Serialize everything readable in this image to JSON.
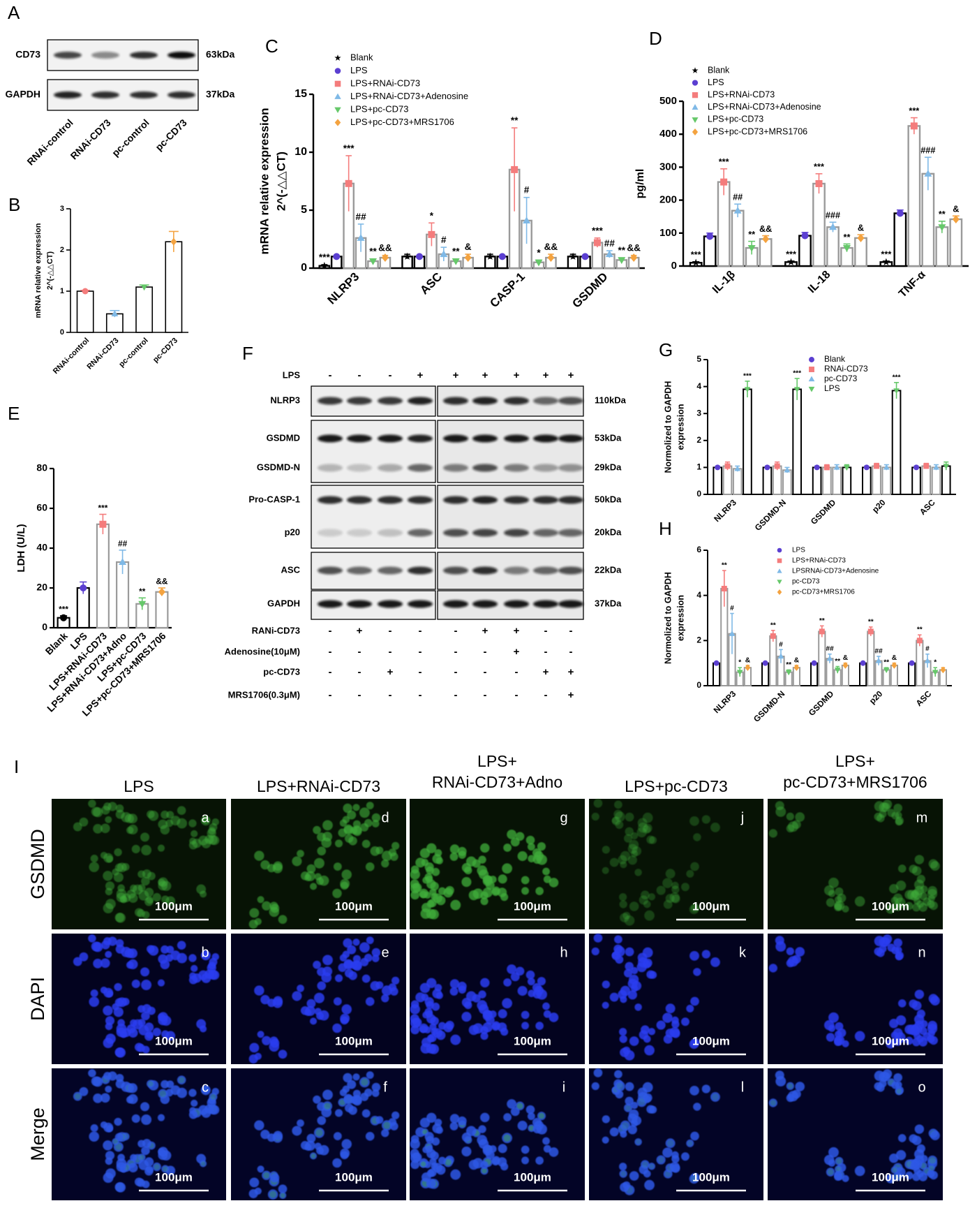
{
  "panel_labels": [
    "A",
    "B",
    "C",
    "D",
    "E",
    "F",
    "G",
    "H",
    "I"
  ],
  "blot_a": {
    "rows": [
      {
        "name": "CD73",
        "size": "63kDa"
      },
      {
        "name": "GAPDH",
        "size": "37kDa"
      }
    ],
    "lanes": [
      "RNAi-control",
      "RNAi-CD73",
      "pc-control",
      "pc-CD73"
    ]
  },
  "blot_f": {
    "top": {
      "name": "LPS",
      "signs": [
        "-",
        "-",
        "-",
        "+",
        "+",
        "+",
        "+",
        "+",
        "+"
      ]
    },
    "rows": [
      {
        "name": "NLRP3",
        "size": "110kDa"
      },
      {
        "name": "GSDMD",
        "size": "53kDa"
      },
      {
        "name": "GSDMD-N",
        "size": "29kDa"
      },
      {
        "name": "Pro-CASP-1",
        "size": "50kDa"
      },
      {
        "name": "p20",
        "size": "20kDa"
      },
      {
        "name": "ASC",
        "size": "22kDa"
      },
      {
        "name": "GAPDH",
        "size": "37kDa"
      }
    ],
    "treatments": [
      {
        "name": "RANi-CD73",
        "signs": [
          "-",
          "+",
          "-",
          "-",
          "-",
          "+",
          "+",
          "-",
          "-"
        ]
      },
      {
        "name": "Adenosine(10μM)",
        "signs": [
          "-",
          "-",
          "-",
          "-",
          "-",
          "-",
          "+",
          "-",
          "-"
        ]
      },
      {
        "name": "pc-CD73",
        "signs": [
          "-",
          "-",
          "+",
          "-",
          "-",
          "-",
          "-",
          "+",
          "+"
        ]
      },
      {
        "name": "MRS1706(0.3μM)",
        "signs": [
          "-",
          "-",
          "-",
          "-",
          "-",
          "-",
          "-",
          "-",
          "+"
        ]
      }
    ]
  },
  "chart_data": [
    {
      "type": "bar",
      "ylabel": [
        "mRNA relative expression",
        "2^(-△△CT)"
      ],
      "categories": [
        "RNAi-control",
        "RNAi-CD73",
        "pc-control",
        "pc-CD73"
      ],
      "values": [
        1.0,
        0.45,
        1.1,
        2.2
      ],
      "errors": [
        0.02,
        0.08,
        0.05,
        0.25
      ],
      "colors": [
        "#f47c7c",
        "#7fb9e6",
        "#66c86a",
        "#f4a340"
      ],
      "markers": [
        "circle",
        "triangle",
        "triangle-down",
        "diamond"
      ],
      "edges": [
        "#000000",
        "#000000",
        "#000000",
        "#000000"
      ],
      "ylim": [
        0,
        3
      ],
      "yticks": [
        0,
        1,
        2,
        3
      ]
    },
    {
      "type": "bar",
      "ylabel": [
        "mRNA relative expression",
        "2^(-△△CT)"
      ],
      "categories": [
        "NLRP3",
        "ASC",
        "CASP-1",
        "GSDMD"
      ],
      "ylim": [
        0,
        15
      ],
      "yticks": [
        0,
        5,
        10,
        15
      ],
      "series": [
        {
          "name": "Blank",
          "color": "#000000",
          "marker": "star",
          "edge": "#000000",
          "values": [
            0.2,
            1.0,
            1.0,
            1.0
          ],
          "errors": [
            0.1,
            0.2,
            0.2,
            0.2
          ],
          "marks": [
            "***",
            null,
            null,
            null
          ]
        },
        {
          "name": "LPS",
          "color": "#5b3fd1",
          "marker": "circle",
          "edge": "#000000",
          "values": [
            1.0,
            1.0,
            1.0,
            1.0
          ],
          "errors": [
            0.1,
            0.1,
            0.1,
            0.1
          ],
          "marks": [
            null,
            null,
            null,
            null
          ]
        },
        {
          "name": "LPS+RNAi-CD73",
          "color": "#f47c7c",
          "marker": "square",
          "edge": "#9a9a9a",
          "values": [
            7.3,
            2.9,
            8.5,
            2.2
          ],
          "errors": [
            2.4,
            1.0,
            3.6,
            0.4
          ],
          "marks": [
            "***",
            "*",
            "**",
            "***"
          ]
        },
        {
          "name": "LPS+RNAi-CD73+Adenosine",
          "color": "#7fb9e6",
          "marker": "triangle",
          "edge": "#9a9a9a",
          "values": [
            2.6,
            1.2,
            4.1,
            1.2
          ],
          "errors": [
            1.2,
            0.6,
            2.0,
            0.3
          ],
          "marks": [
            "##",
            "#",
            "#",
            "##"
          ]
        },
        {
          "name": "LPS+pc-CD73",
          "color": "#66c86a",
          "marker": "triangle-down",
          "edge": "#9a9a9a",
          "values": [
            0.6,
            0.6,
            0.5,
            0.7
          ],
          "errors": [
            0.2,
            0.2,
            0.2,
            0.2
          ],
          "marks": [
            "**",
            "**",
            "*",
            "**"
          ]
        },
        {
          "name": "LPS+pc-CD73+MRS1706",
          "color": "#f4a340",
          "marker": "diamond",
          "edge": "#9a9a9a",
          "values": [
            0.9,
            0.9,
            0.9,
            0.9
          ],
          "errors": [
            0.2,
            0.3,
            0.3,
            0.2
          ],
          "marks": [
            "&&",
            "&",
            "&&",
            "&&"
          ]
        }
      ]
    },
    {
      "type": "bar",
      "ylabel": [
        "pg/ml"
      ],
      "categories": [
        "IL-1β",
        "IL-18",
        "TNF-α"
      ],
      "ylim": [
        0,
        500
      ],
      "yticks": [
        0,
        100,
        200,
        300,
        400,
        500
      ],
      "series": [
        {
          "name": "Blank",
          "color": "#000000",
          "marker": "star",
          "edge": "#000000",
          "values": [
            10,
            12,
            12
          ],
          "errors": [
            3,
            3,
            3
          ],
          "marks": [
            "***",
            "***",
            "***"
          ]
        },
        {
          "name": "LPS",
          "color": "#5b3fd1",
          "marker": "circle",
          "edge": "#000000",
          "values": [
            90,
            92,
            160
          ],
          "errors": [
            10,
            10,
            10
          ],
          "marks": [
            null,
            null,
            null
          ]
        },
        {
          "name": "LPS+RNAi-CD73",
          "color": "#f47c7c",
          "marker": "square",
          "edge": "#9a9a9a",
          "values": [
            255,
            250,
            425
          ],
          "errors": [
            40,
            30,
            25
          ],
          "marks": [
            "***",
            "***",
            "***"
          ]
        },
        {
          "name": "LPS+RNAi-CD73+Adenosine",
          "color": "#7fb9e6",
          "marker": "triangle",
          "edge": "#9a9a9a",
          "values": [
            168,
            118,
            280
          ],
          "errors": [
            20,
            15,
            50
          ],
          "marks": [
            "##",
            "###",
            "###"
          ]
        },
        {
          "name": "LPS+pc-CD73",
          "color": "#66c86a",
          "marker": "triangle-down",
          "edge": "#9a9a9a",
          "values": [
            55,
            55,
            118
          ],
          "errors": [
            20,
            12,
            18
          ],
          "marks": [
            "**",
            "**",
            "**"
          ]
        },
        {
          "name": "LPS+pc-CD73+MRS1706",
          "color": "#f4a340",
          "marker": "diamond",
          "edge": "#9a9a9a",
          "values": [
            82,
            85,
            142
          ],
          "errors": [
            10,
            10,
            10
          ],
          "marks": [
            "&&",
            "&",
            "&"
          ]
        }
      ]
    },
    {
      "type": "bar",
      "ylabel": [
        "LDH (U/L)"
      ],
      "categories": [
        "Blank",
        "LPS",
        "LPS+RNAi-CD73",
        "LPS+RNAi-CD73+Adno",
        "LPS+pc-CD73",
        "LPS+pc-CD73+MRS1706"
      ],
      "values": [
        5,
        20,
        52,
        33,
        12,
        18
      ],
      "errors": [
        1,
        3,
        5,
        6,
        3,
        2
      ],
      "value_marks": [
        "***",
        null,
        "***",
        "##",
        "**",
        "&&"
      ],
      "colors": [
        "#000000",
        "#5b3fd1",
        "#f47c7c",
        "#7fb9e6",
        "#66c86a",
        "#f4a340"
      ],
      "markers": [
        "circle",
        "circle",
        "square",
        "triangle",
        "triangle-down",
        "diamond"
      ],
      "edges": [
        "#000000",
        "#000000",
        "#9a9a9a",
        "#9a9a9a",
        "#9a9a9a",
        "#9a9a9a"
      ],
      "ylim": [
        0,
        80
      ],
      "yticks": [
        0,
        20,
        40,
        60,
        80
      ]
    },
    {
      "type": "bar",
      "ylabel": [
        "Normolized to GAPDH",
        "expression"
      ],
      "categories": [
        "NLRP3",
        "GSDMD-N",
        "GSDMD",
        "p20",
        "ASC"
      ],
      "ylim": [
        0,
        5
      ],
      "yticks": [
        0,
        1,
        2,
        3,
        4,
        5
      ],
      "series": [
        {
          "name": "Blank",
          "color": "#5b3fd1",
          "marker": "circle",
          "edge": "#000000",
          "values": [
            1.0,
            1.0,
            1.0,
            1.0,
            1.0
          ],
          "errors": [
            0.05,
            0.05,
            0.05,
            0.05,
            0.05
          ],
          "marks": [
            null,
            null,
            null,
            null,
            null
          ]
        },
        {
          "name": "RNAi-CD73",
          "color": "#f47c7c",
          "marker": "square",
          "edge": "#9a9a9a",
          "values": [
            1.05,
            1.05,
            1.0,
            1.05,
            1.05
          ],
          "errors": [
            0.15,
            0.15,
            0.1,
            0.1,
            0.1
          ],
          "marks": [
            null,
            null,
            null,
            null,
            null
          ]
        },
        {
          "name": "pc-CD73",
          "color": "#7fb9e6",
          "marker": "triangle",
          "edge": "#9a9a9a",
          "values": [
            0.95,
            0.9,
            1.0,
            1.0,
            1.0
          ],
          "errors": [
            0.1,
            0.1,
            0.1,
            0.1,
            0.1
          ],
          "marks": [
            null,
            null,
            null,
            null,
            null
          ]
        },
        {
          "name": "LPS",
          "color": "#66c86a",
          "marker": "triangle-down",
          "edge": "#000000",
          "values": [
            3.9,
            3.9,
            1.0,
            3.85,
            1.05
          ],
          "errors": [
            0.3,
            0.4,
            0.1,
            0.3,
            0.15
          ],
          "marks": [
            "***",
            "***",
            null,
            "***",
            null
          ]
        }
      ]
    },
    {
      "type": "bar",
      "ylabel": [
        "Normolized to GAPDH",
        "expression"
      ],
      "categories": [
        "NLRP3",
        "GSDMD-N",
        "GSDMD",
        "p20",
        "ASC"
      ],
      "ylim": [
        0,
        6
      ],
      "yticks": [
        0,
        2,
        4,
        6
      ],
      "series": [
        {
          "name": "LPS",
          "color": "#5b3fd1",
          "marker": "circle",
          "edge": "#000000",
          "values": [
            1.0,
            1.0,
            1.0,
            1.0,
            1.0
          ],
          "errors": [
            0.05,
            0.05,
            0.05,
            0.05,
            0.05
          ],
          "marks": [
            null,
            null,
            null,
            null,
            null
          ]
        },
        {
          "name": "LPS+RNAi-CD73",
          "color": "#f47c7c",
          "marker": "square",
          "edge": "#9a9a9a",
          "values": [
            4.3,
            2.2,
            2.4,
            2.4,
            2.0
          ],
          "errors": [
            0.8,
            0.25,
            0.25,
            0.2,
            0.25
          ],
          "marks": [
            "**",
            "**",
            "**",
            "**",
            "**"
          ]
        },
        {
          "name": "LPSRNAi-CD73+Adenosine",
          "color": "#7fb9e6",
          "marker": "triangle",
          "edge": "#9a9a9a",
          "values": [
            2.3,
            1.3,
            1.2,
            1.1,
            1.1
          ],
          "errors": [
            0.9,
            0.3,
            0.2,
            0.2,
            0.3
          ],
          "marks": [
            "#",
            "#",
            "##",
            "##",
            "#"
          ]
        },
        {
          "name": "pc-CD73",
          "color": "#66c86a",
          "marker": "triangle-down",
          "edge": "#9a9a9a",
          "values": [
            0.6,
            0.6,
            0.7,
            0.7,
            0.6
          ],
          "errors": [
            0.2,
            0.1,
            0.15,
            0.1,
            0.2
          ],
          "marks": [
            "*",
            "**",
            "**",
            "**",
            "*"
          ]
        },
        {
          "name": "pc-CD73+MRS1706",
          "color": "#f4a340",
          "marker": "diamond",
          "edge": "#9a9a9a",
          "values": [
            0.8,
            0.8,
            0.9,
            0.9,
            0.7
          ],
          "errors": [
            0.1,
            0.1,
            0.1,
            0.1,
            0.1
          ],
          "marks": [
            "&",
            "&",
            "&",
            "&",
            null
          ]
        }
      ]
    }
  ],
  "microscopy": {
    "columns": [
      [
        "LPS"
      ],
      [
        "LPS+RNAi-CD73"
      ],
      [
        "LPS+",
        "RNAi-CD73+Adno"
      ],
      [
        "LPS+pc-CD73"
      ],
      [
        "LPS+",
        "pc-CD73+MRS1706"
      ]
    ],
    "rows": [
      "GSDMD",
      "DAPI",
      "Merge"
    ],
    "letters": [
      [
        "a",
        "b",
        "c"
      ],
      [
        "d",
        "e",
        "f"
      ],
      [
        "g",
        "h",
        "i"
      ],
      [
        "j",
        "k",
        "l"
      ],
      [
        "m",
        "n",
        "o"
      ]
    ],
    "scale_bar": "100μm"
  }
}
